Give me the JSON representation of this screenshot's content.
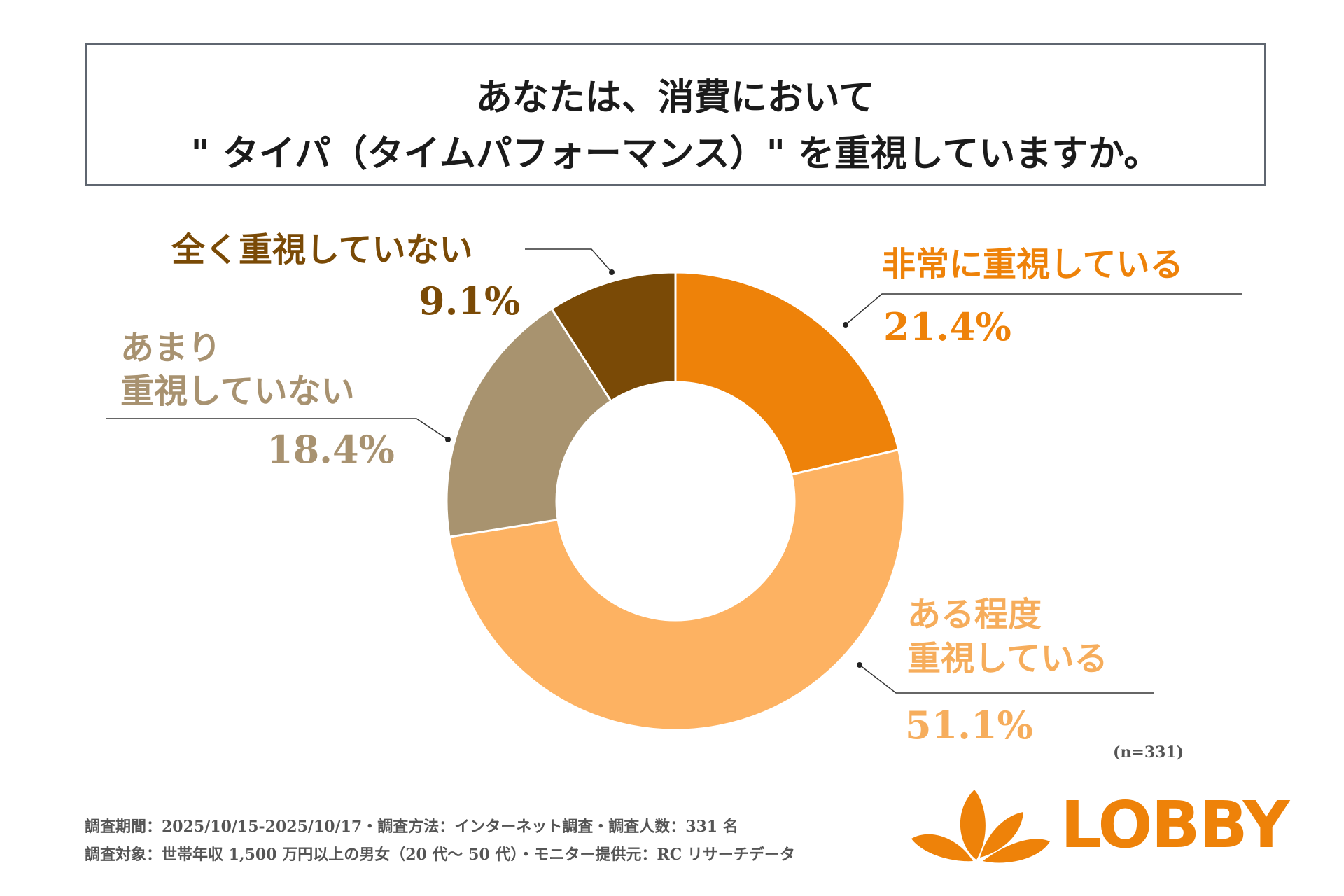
{
  "title": {
    "line1": "あなたは、消費において",
    "line2": "\" タイパ（タイムパフォーマンス）\" を重視していますか。"
  },
  "chart_data": {
    "type": "pie",
    "donut": true,
    "categories": [
      "非常に重視している",
      "ある程度重視している",
      "あまり重視していない",
      "全く重視していない"
    ],
    "values": [
      21.4,
      51.1,
      18.4,
      9.1
    ],
    "unit": "%",
    "colors": [
      "#ee8209",
      "#fdb262",
      "#a8936f",
      "#7a4a06"
    ],
    "n_label": "(n=331)"
  },
  "labels": {
    "very": {
      "name": "非常に重視している",
      "value": "21.4%"
    },
    "some": {
      "name_line1": "ある程度",
      "name_line2": "重視している",
      "value": "51.1%"
    },
    "little": {
      "name_line1": "あまり",
      "name_line2": "重視していない",
      "value": "18.4%"
    },
    "none": {
      "name": "全く重視していない",
      "value": "9.1%"
    }
  },
  "footer": {
    "line1": "調査期間：2025/10/15-2025/10/17・調査方法：インターネット調査・調査人数：331 名",
    "line2": "調査対象：世帯年収 1,500 万円以上の男女（20 代〜 50 代）・モニター提供元：RC リサーチデータ"
  },
  "logo": {
    "text": "LOBBY",
    "color": "#ee8209"
  }
}
